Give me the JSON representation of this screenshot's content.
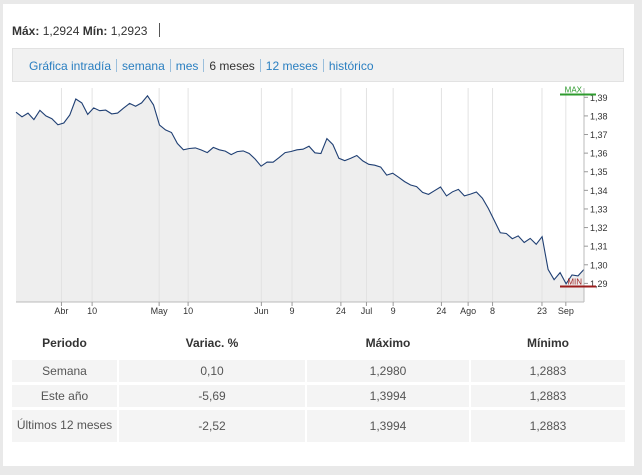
{
  "header": {
    "max_label": "Máx:",
    "max_value": "1,2924",
    "min_label": "Mín:",
    "min_value": "1,2923"
  },
  "tabs": [
    {
      "label": "Gráfica intradía",
      "active": false
    },
    {
      "label": "semana",
      "active": false
    },
    {
      "label": "mes",
      "active": false
    },
    {
      "label": "6 meses",
      "active": true
    },
    {
      "label": "12 meses",
      "active": false
    },
    {
      "label": "histórico",
      "active": false
    }
  ],
  "chart_data": {
    "type": "area",
    "ylim": [
      1.28,
      1.395
    ],
    "y_ticks": [
      1.29,
      1.3,
      1.31,
      1.32,
      1.33,
      1.34,
      1.35,
      1.36,
      1.37,
      1.38,
      1.39
    ],
    "y_tick_labels": [
      "1,29",
      "1,30",
      "1,31",
      "1,32",
      "1,33",
      "1,34",
      "1,35",
      "1,36",
      "1,37",
      "1,38",
      "1,39"
    ],
    "x_tick_labels": [
      {
        "label": "Abr",
        "t": 0.08
      },
      {
        "label": "10",
        "t": 0.134
      },
      {
        "label": "May",
        "t": 0.252
      },
      {
        "label": "10",
        "t": 0.303
      },
      {
        "label": "Jun",
        "t": 0.432
      },
      {
        "label": "9",
        "t": 0.486
      },
      {
        "label": "24",
        "t": 0.572
      },
      {
        "label": "Jul",
        "t": 0.617
      },
      {
        "label": "9",
        "t": 0.664
      },
      {
        "label": "24",
        "t": 0.749
      },
      {
        "label": "Ago",
        "t": 0.796
      },
      {
        "label": "8",
        "t": 0.839
      },
      {
        "label": "23",
        "t": 0.926
      },
      {
        "label": "Sep",
        "t": 0.968
      }
    ],
    "max_marker": {
      "label": "MAX",
      "value": 1.3915,
      "color": "#2e9b2e"
    },
    "min_marker": {
      "label": "MIN",
      "value": 1.2883,
      "color": "#9b1c1c"
    },
    "values": [
      1.382,
      1.3795,
      1.3815,
      1.378,
      1.383,
      1.38,
      1.3785,
      1.3752,
      1.3762,
      1.3805,
      1.3891,
      1.387,
      1.3808,
      1.3843,
      1.3828,
      1.3831,
      1.3811,
      1.3815,
      1.3842,
      1.3867,
      1.3852,
      1.387,
      1.3908,
      1.3859,
      1.3751,
      1.3725,
      1.3711,
      1.3652,
      1.3618,
      1.3625,
      1.3628,
      1.3617,
      1.3603,
      1.3631,
      1.3618,
      1.3611,
      1.3592,
      1.3608,
      1.3612,
      1.3598,
      1.3568,
      1.353,
      1.3552,
      1.3551,
      1.3576,
      1.3603,
      1.3609,
      1.3618,
      1.3621,
      1.3637,
      1.3602,
      1.3598,
      1.3678,
      1.3646,
      1.3572,
      1.356,
      1.3572,
      1.3587,
      1.3558,
      1.354,
      1.3535,
      1.3525,
      1.3482,
      1.3492,
      1.347,
      1.3447,
      1.3429,
      1.342,
      1.3389,
      1.3378,
      1.3398,
      1.3418,
      1.337,
      1.3392,
      1.3405,
      1.337,
      1.338,
      1.3391,
      1.3358,
      1.3303,
      1.3238,
      1.3172,
      1.3168,
      1.314,
      1.3155,
      1.312,
      1.3142,
      1.311,
      1.3151,
      1.2975,
      1.292,
      1.2958,
      1.2898,
      1.2945,
      1.294,
      1.2975
    ]
  },
  "table": {
    "headers": [
      "Periodo",
      "Variac. %",
      "Máximo",
      "Mínimo"
    ],
    "rows": [
      {
        "period": "Semana",
        "change": "0,10",
        "change_sign": "pos",
        "max": "1,2980",
        "min": "1,2883"
      },
      {
        "period": "Este año",
        "change": "-5,69",
        "change_sign": "neg",
        "max": "1,3994",
        "min": "1,2883"
      },
      {
        "period": "Últimos 12 meses",
        "change": "-2,52",
        "change_sign": "neg",
        "max": "1,3994",
        "min": "1,2883"
      }
    ]
  }
}
